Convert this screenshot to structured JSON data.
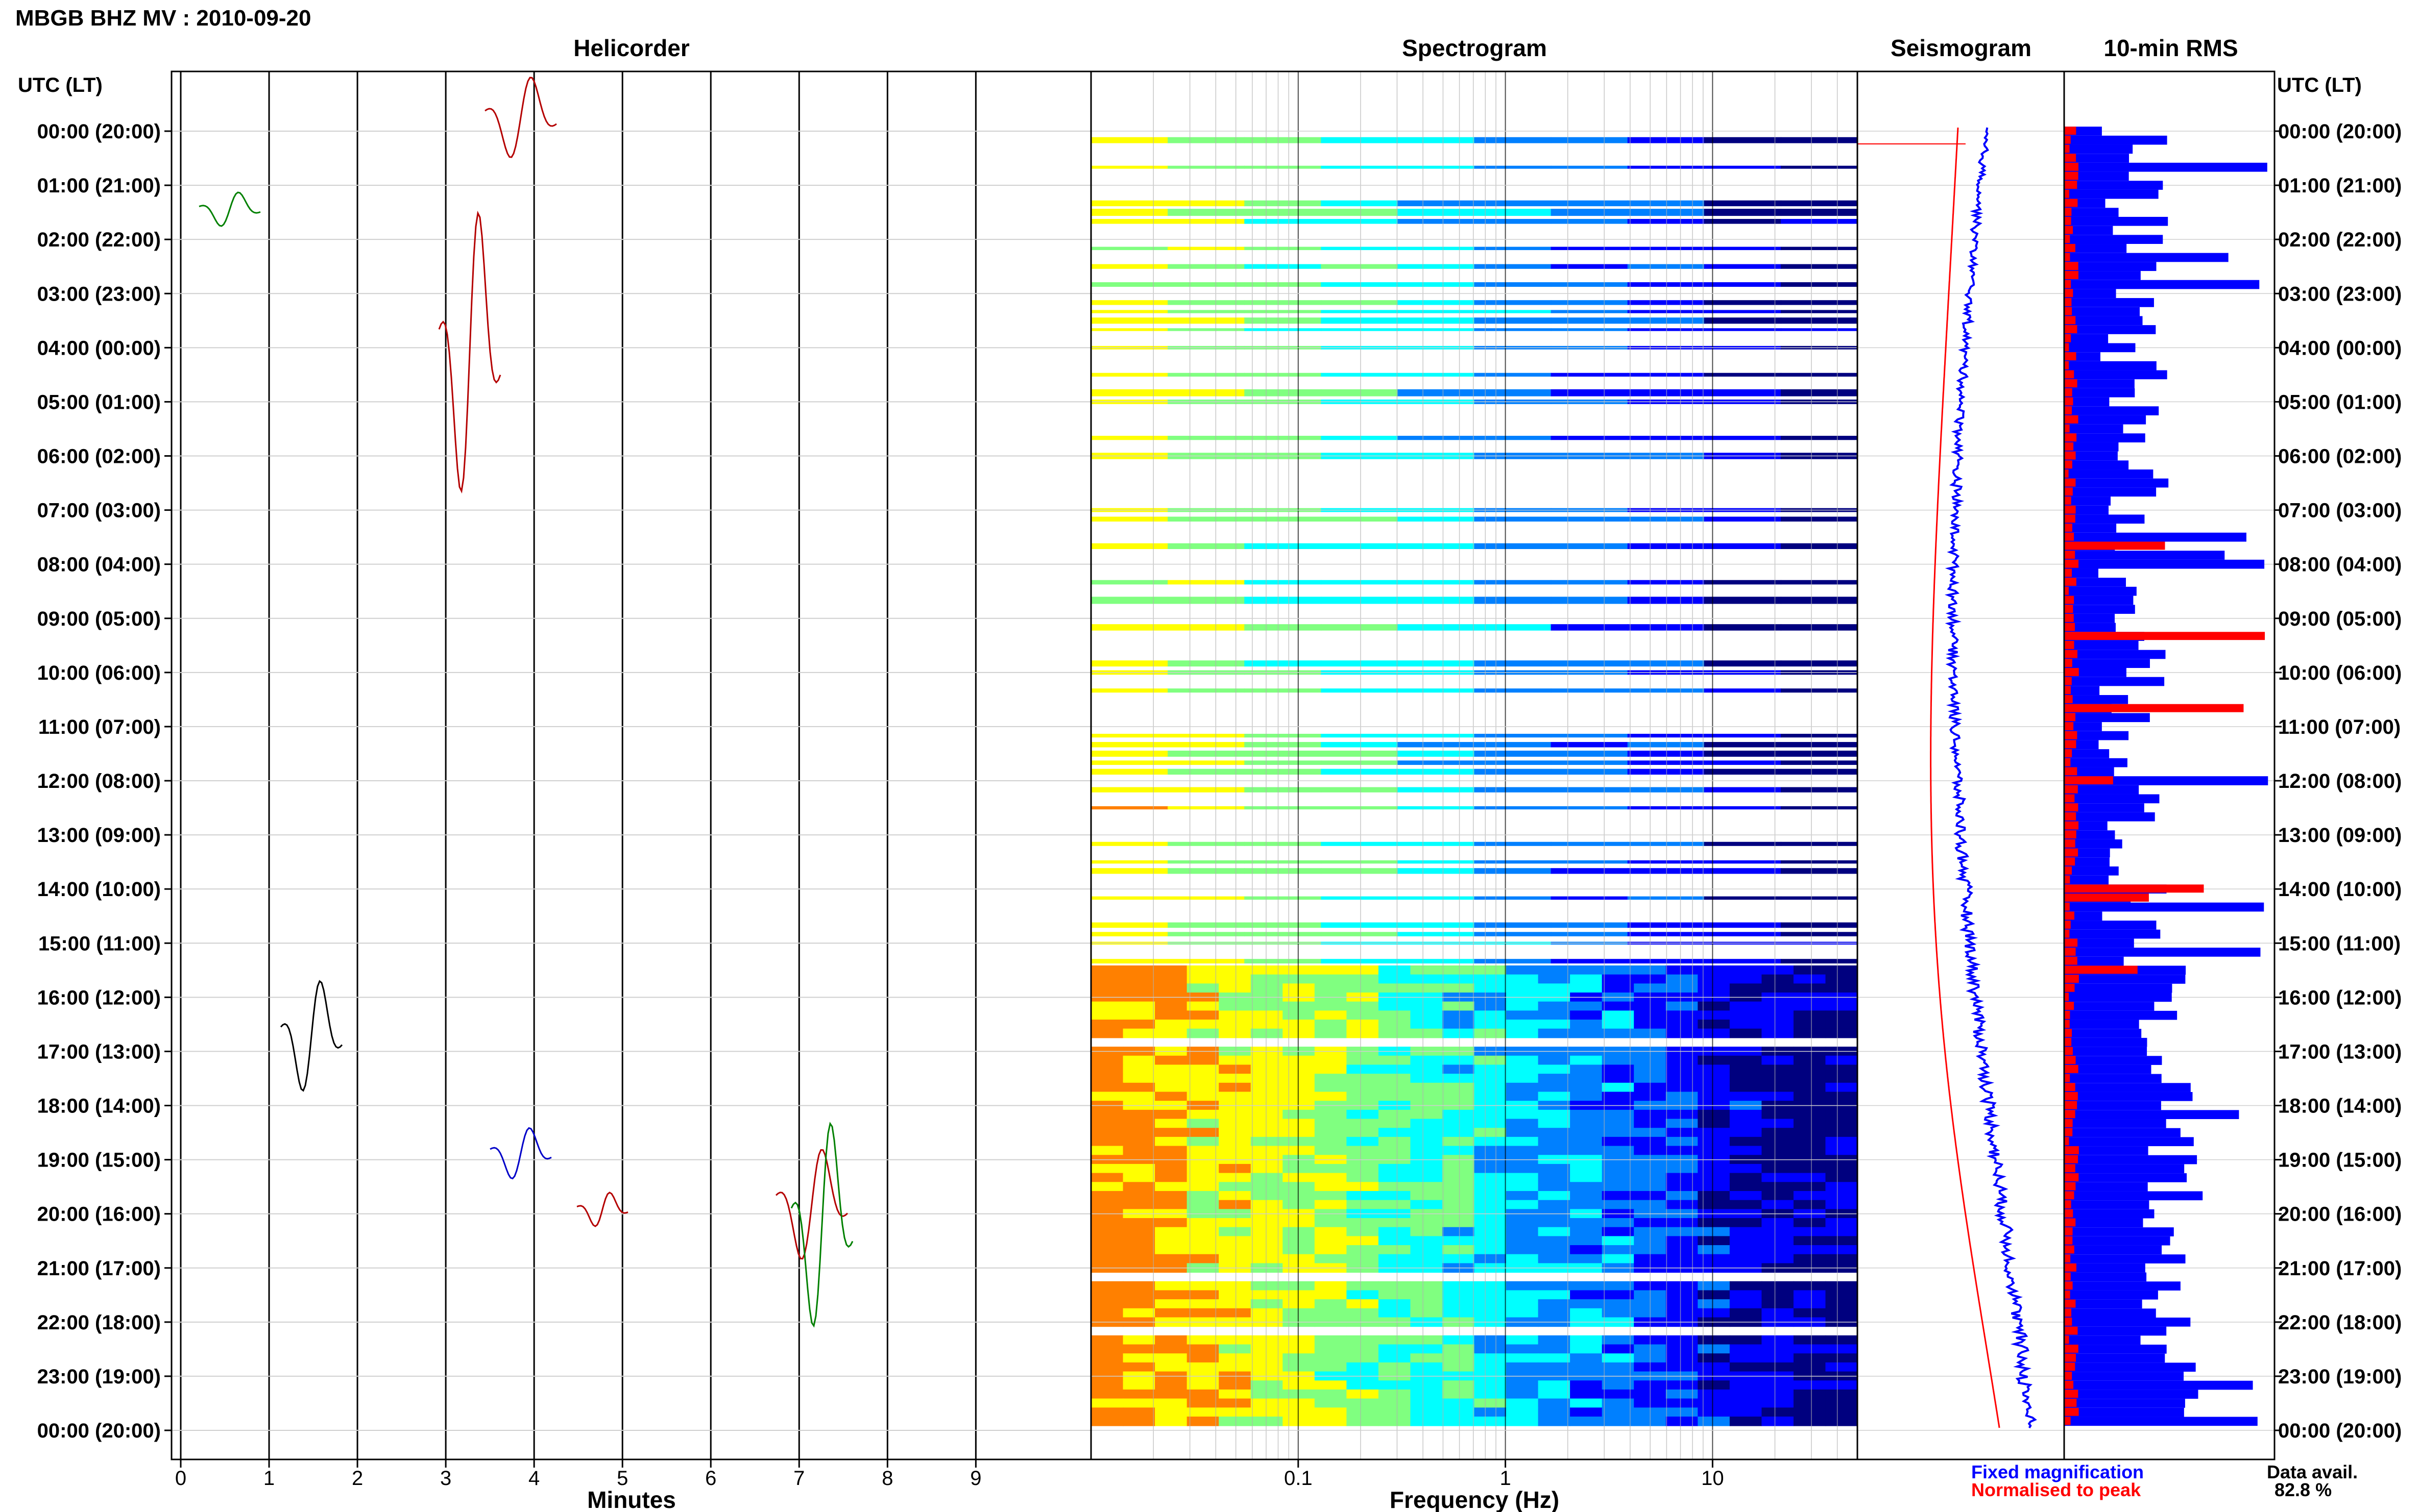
{
  "title": "MBGB BHZ MV : 2010-09-20",
  "panels": {
    "helicorder": "Helicorder",
    "spectrogram": "Spectrogram",
    "seismogram": "Seismogram",
    "rms": "10-min RMS"
  },
  "utc_header": "UTC (LT)",
  "time_labels": [
    "00:00 (20:00)",
    "01:00 (21:00)",
    "02:00 (22:00)",
    "03:00 (23:00)",
    "04:00 (00:00)",
    "05:00 (01:00)",
    "06:00 (02:00)",
    "07:00 (03:00)",
    "08:00 (04:00)",
    "09:00 (05:00)",
    "10:00 (06:00)",
    "11:00 (07:00)",
    "12:00 (08:00)",
    "13:00 (09:00)",
    "14:00 (10:00)",
    "15:00 (11:00)",
    "16:00 (12:00)",
    "17:00 (13:00)",
    "18:00 (14:00)",
    "19:00 (15:00)",
    "20:00 (16:00)",
    "21:00 (17:00)",
    "22:00 (18:00)",
    "23:00 (19:00)",
    "00:00 (20:00)"
  ],
  "legend": {
    "fixed": "Fixed magnification",
    "normalised": "Normalised to peak",
    "data_avail_label": "Data avail.",
    "data_avail_value": "82.8 %"
  },
  "colors": {
    "trace_cycle": [
      "#000000",
      "#b40000",
      "#0000c8",
      "#008000"
    ],
    "rms_fixed": "#0000ff",
    "rms_normalised": "#ff0000",
    "spectrogram_cmap": [
      "#00007f",
      "#0000ff",
      "#0080ff",
      "#00ffff",
      "#80ff80",
      "#ffff00",
      "#ff8000"
    ]
  },
  "chart_data": [
    {
      "type": "line",
      "panel": "helicorder",
      "xlabel": "Minutes",
      "x_ticks": [
        "0",
        "1",
        "2",
        "3",
        "4",
        "5",
        "6",
        "7",
        "8",
        "9"
      ],
      "xlim": [
        0,
        10
      ],
      "rows_per_hour": 6,
      "hours": 24
    },
    {
      "type": "heatmap",
      "panel": "spectrogram",
      "xlabel": "Frequency (Hz)",
      "x_scale": "log",
      "xlim": [
        0.01,
        50
      ],
      "x_ticks": [
        "0.1",
        "1",
        "10"
      ],
      "rows_with_data": 144
    },
    {
      "type": "line",
      "panel": "seismogram",
      "series": [
        {
          "name": "Fixed magnification"
        },
        {
          "name": "Normalised to peak"
        }
      ]
    },
    {
      "type": "bar",
      "panel": "rms",
      "orientation": "horizontal",
      "interval_minutes": 10,
      "series": [
        {
          "name": "Fixed magnification"
        },
        {
          "name": "Normalised to peak"
        }
      ]
    }
  ]
}
